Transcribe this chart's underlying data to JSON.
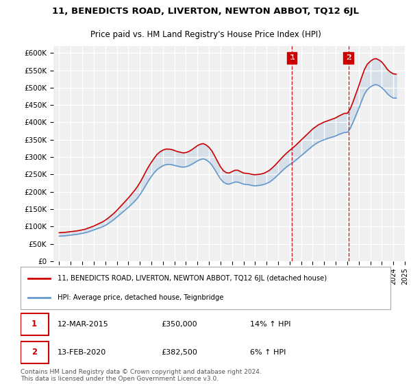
{
  "title1": "11, BENEDICTS ROAD, LIVERTON, NEWTON ABBOT, TQ12 6JL",
  "title2": "Price paid vs. HM Land Registry's House Price Index (HPI)",
  "legend_line1": "11, BENEDICTS ROAD, LIVERTON, NEWTON ABBOT, TQ12 6JL (detached house)",
  "legend_line2": "HPI: Average price, detached house, Teignbridge",
  "annotation1_label": "1",
  "annotation1_date": "12-MAR-2015",
  "annotation1_price": "£350,000",
  "annotation1_hpi": "14% ↑ HPI",
  "annotation1_year": 2015.2,
  "annotation1_value": 350000,
  "annotation2_label": "2",
  "annotation2_date": "13-FEB-2020",
  "annotation2_price": "£382,500",
  "annotation2_hpi": "6% ↑ HPI",
  "annotation2_year": 2020.1,
  "annotation2_value": 382500,
  "footer": "Contains HM Land Registry data © Crown copyright and database right 2024.\nThis data is licensed under the Open Government Licence v3.0.",
  "ylim": [
    0,
    620000
  ],
  "ytick_step": 50000,
  "line_color_red": "#cc0000",
  "line_color_blue": "#6699cc",
  "background_color": "#ffffff",
  "plot_bg_color": "#f0f0f0",
  "grid_color": "#ffffff",
  "annotation_box_color": "#cc0000",
  "hpi_data": {
    "years": [
      1995.0,
      1995.25,
      1995.5,
      1995.75,
      1996.0,
      1996.25,
      1996.5,
      1996.75,
      1997.0,
      1997.25,
      1997.5,
      1997.75,
      1998.0,
      1998.25,
      1998.5,
      1998.75,
      1999.0,
      1999.25,
      1999.5,
      1999.75,
      2000.0,
      2000.25,
      2000.5,
      2000.75,
      2001.0,
      2001.25,
      2001.5,
      2001.75,
      2002.0,
      2002.25,
      2002.5,
      2002.75,
      2003.0,
      2003.25,
      2003.5,
      2003.75,
      2004.0,
      2004.25,
      2004.5,
      2004.75,
      2005.0,
      2005.25,
      2005.5,
      2005.75,
      2006.0,
      2006.25,
      2006.5,
      2006.75,
      2007.0,
      2007.25,
      2007.5,
      2007.75,
      2008.0,
      2008.25,
      2008.5,
      2008.75,
      2009.0,
      2009.25,
      2009.5,
      2009.75,
      2010.0,
      2010.25,
      2010.5,
      2010.75,
      2011.0,
      2011.25,
      2011.5,
      2011.75,
      2012.0,
      2012.25,
      2012.5,
      2012.75,
      2013.0,
      2013.25,
      2013.5,
      2013.75,
      2014.0,
      2014.25,
      2014.5,
      2014.75,
      2015.0,
      2015.25,
      2015.5,
      2015.75,
      2016.0,
      2016.25,
      2016.5,
      2016.75,
      2017.0,
      2017.25,
      2017.5,
      2017.75,
      2018.0,
      2018.25,
      2018.5,
      2018.75,
      2019.0,
      2019.25,
      2019.5,
      2019.75,
      2020.0,
      2020.25,
      2020.5,
      2020.75,
      2021.0,
      2021.25,
      2021.5,
      2021.75,
      2022.0,
      2022.25,
      2022.5,
      2022.75,
      2023.0,
      2023.25,
      2023.5,
      2023.75,
      2024.0,
      2024.25
    ],
    "hpi_values": [
      72000,
      72500,
      73000,
      74000,
      75000,
      76000,
      77000,
      78500,
      80000,
      82000,
      84000,
      87000,
      90000,
      93000,
      96000,
      99000,
      103000,
      108000,
      114000,
      120000,
      127000,
      134000,
      141000,
      148000,
      155000,
      163000,
      171000,
      180000,
      191000,
      204000,
      218000,
      232000,
      244000,
      255000,
      264000,
      270000,
      275000,
      278000,
      279000,
      278000,
      276000,
      274000,
      272000,
      271000,
      272000,
      275000,
      279000,
      284000,
      289000,
      293000,
      295000,
      292000,
      286000,
      277000,
      264000,
      250000,
      237000,
      228000,
      223000,
      222000,
      225000,
      228000,
      228000,
      225000,
      222000,
      221000,
      220000,
      218000,
      217000,
      218000,
      219000,
      221000,
      224000,
      228000,
      234000,
      241000,
      249000,
      257000,
      265000,
      272000,
      278000,
      284000,
      290000,
      297000,
      304000,
      311000,
      318000,
      325000,
      332000,
      338000,
      343000,
      347000,
      350000,
      353000,
      356000,
      358000,
      361000,
      365000,
      368000,
      371000,
      371000,
      382000,
      400000,
      420000,
      440000,
      462000,
      482000,
      495000,
      502000,
      507000,
      509000,
      506000,
      500000,
      492000,
      482000,
      475000,
      470000,
      470000
    ],
    "red_values": [
      82000,
      82500,
      83000,
      84000,
      85000,
      86000,
      87000,
      88500,
      90000,
      92000,
      95000,
      98000,
      101000,
      105000,
      109000,
      113000,
      118000,
      124000,
      131000,
      138000,
      146000,
      155000,
      164000,
      173000,
      182000,
      192000,
      202000,
      213000,
      226000,
      241000,
      257000,
      272000,
      285000,
      297000,
      308000,
      315000,
      320000,
      323000,
      323000,
      322000,
      319000,
      316000,
      314000,
      312000,
      313000,
      316000,
      321000,
      327000,
      333000,
      337000,
      339000,
      335000,
      328000,
      318000,
      303000,
      287000,
      272000,
      261000,
      255000,
      254000,
      258000,
      262000,
      262000,
      258000,
      254000,
      253000,
      252000,
      250000,
      249000,
      250000,
      251000,
      253000,
      257000,
      262000,
      269000,
      277000,
      286000,
      295000,
      304000,
      312000,
      319000,
      326000,
      333000,
      341000,
      349000,
      357000,
      365000,
      373000,
      381000,
      387000,
      393000,
      397000,
      401000,
      404000,
      407000,
      410000,
      413000,
      418000,
      422000,
      426000,
      426000,
      438000,
      459000,
      482000,
      505000,
      530000,
      553000,
      568000,
      576000,
      582000,
      584000,
      580000,
      574000,
      564000,
      552000,
      545000,
      540000,
      539000
    ]
  },
  "xlim_start": 1994.5,
  "xlim_end": 2025.0,
  "xticks": [
    1995,
    1996,
    1997,
    1998,
    1999,
    2000,
    2001,
    2002,
    2003,
    2004,
    2005,
    2006,
    2007,
    2008,
    2009,
    2010,
    2011,
    2012,
    2013,
    2014,
    2015,
    2016,
    2017,
    2018,
    2019,
    2020,
    2021,
    2022,
    2023,
    2024,
    2025
  ]
}
